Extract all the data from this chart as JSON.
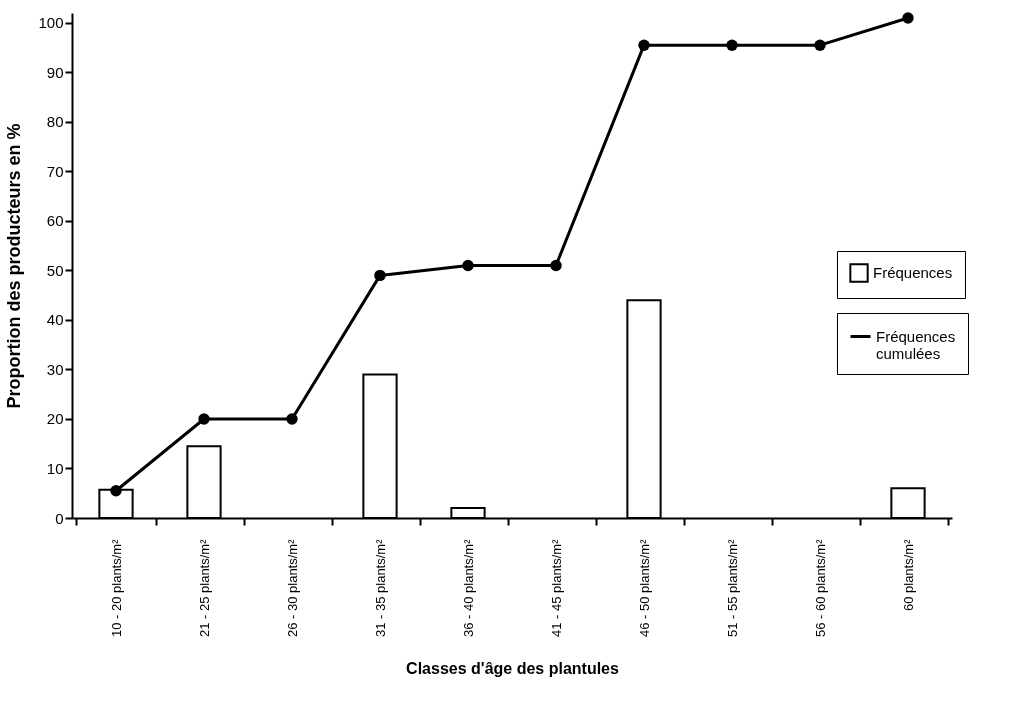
{
  "chart_data": {
    "type": "bar",
    "xlabel": "Classes d'âge des plantules",
    "ylabel": "Proportion des producteurs en %",
    "categories": [
      "10 - 20 plants/m²",
      "21 - 25 plants/m²",
      "26 - 30 plants/m²",
      "31 - 35 plants/m²",
      "36 - 40 plants/m²",
      "41 - 45 plants/m²",
      "46 - 50 plants/m²",
      "51 - 55  plants/m²",
      "56 - 60 plants/m²",
      "60 plants/m²"
    ],
    "series": [
      {
        "name": "Fréquences",
        "color": "#ffffff",
        "values": [
          5.7,
          14.5,
          null,
          29,
          2,
          null,
          44,
          null,
          null,
          6
        ]
      },
      {
        "name": "Fréquences cumulées",
        "type": "line",
        "color": "#000000",
        "values": [
          5.5,
          20,
          20,
          49,
          51,
          51,
          95.5,
          95.5,
          95.5,
          101
        ]
      }
    ],
    "ylim": [
      0,
      102
    ],
    "yticks": [
      0,
      10,
      20,
      30,
      40,
      50,
      60,
      70,
      80,
      90,
      100
    ],
    "legend": "right",
    "marker": "circle",
    "line_style": "solid"
  }
}
